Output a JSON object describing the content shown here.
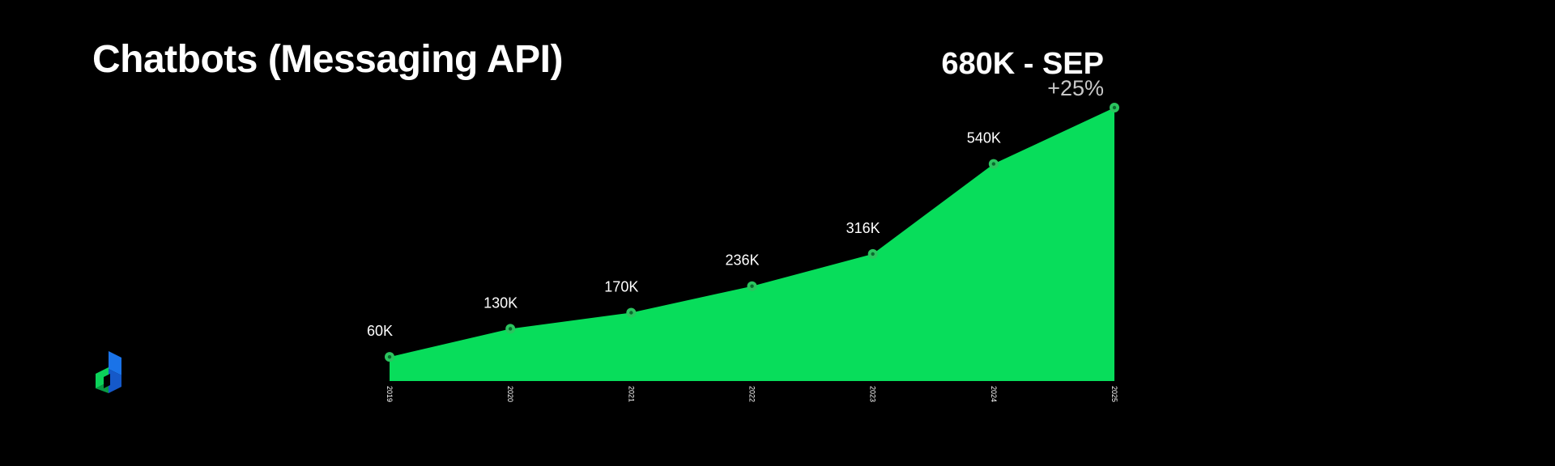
{
  "header": {
    "title": "Chatbots (Messaging API)",
    "headline_value": "680K - SEP",
    "headline_change": "+25%"
  },
  "logo": {
    "icon": "cube-logo-icon",
    "colors": [
      "#0bd35a",
      "#1a73e8"
    ]
  },
  "chart_data": {
    "type": "area",
    "title": "Chatbots (Messaging API)",
    "x": [
      "2019",
      "2020",
      "2021",
      "2022",
      "2023",
      "2024",
      "2025"
    ],
    "values": [
      60,
      130,
      170,
      236,
      316,
      540,
      680
    ],
    "labels": [
      "60K",
      "130K",
      "170K",
      "236K",
      "316K",
      "540K",
      ""
    ],
    "ylim": [
      0,
      680
    ],
    "grid": false,
    "legend": "none",
    "fill_color": "#08dd5b",
    "marker_color": "#2bc45f"
  }
}
